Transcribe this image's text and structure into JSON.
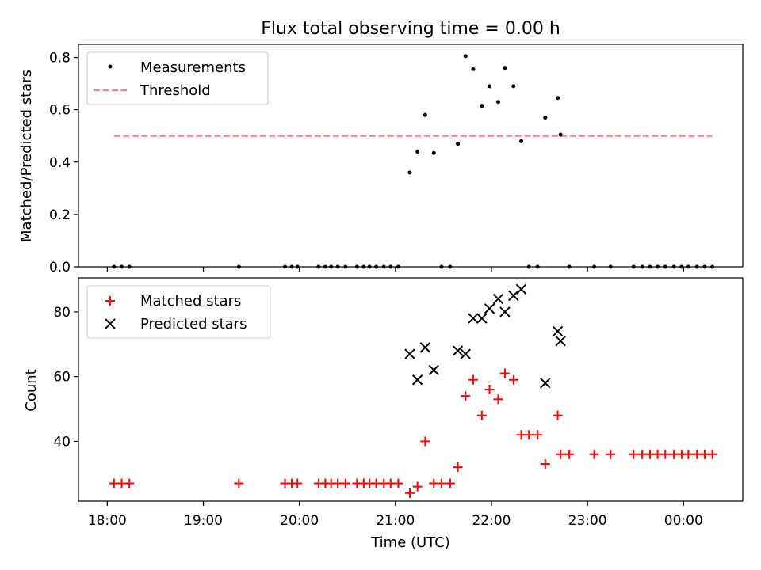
{
  "title": "Flux total observing time = 0.00 h",
  "xlabel": "Time (UTC)",
  "xticks": [
    {
      "t": 18.0,
      "label": "18:00"
    },
    {
      "t": 19.0,
      "label": "19:00"
    },
    {
      "t": 20.0,
      "label": "20:00"
    },
    {
      "t": 21.0,
      "label": "21:00"
    },
    {
      "t": 22.0,
      "label": "22:00"
    },
    {
      "t": 23.0,
      "label": "23:00"
    },
    {
      "t": 24.0,
      "label": "00:00"
    }
  ],
  "chart_data": [
    {
      "type": "scatter",
      "ylabel": "Matched/Predicted stars",
      "xlim": [
        "17:42",
        "00:37"
      ],
      "ylim": [
        0,
        0.85
      ],
      "yticks": [
        "0.0",
        "0.2",
        "0.4",
        "0.6",
        "0.8"
      ],
      "legend": "top-left",
      "grid": false,
      "series": [
        {
          "name": "Measurements",
          "marker": "dot",
          "color": "#000000",
          "points": [
            {
              "x": 18.07,
              "y": 0
            },
            {
              "x": 18.15,
              "y": 0
            },
            {
              "x": 18.23,
              "y": 0
            },
            {
              "x": 19.37,
              "y": 0
            },
            {
              "x": 19.85,
              "y": 0
            },
            {
              "x": 19.92,
              "y": 0
            },
            {
              "x": 19.98,
              "y": 0
            },
            {
              "x": 20.2,
              "y": 0
            },
            {
              "x": 20.27,
              "y": 0
            },
            {
              "x": 20.33,
              "y": 0
            },
            {
              "x": 20.4,
              "y": 0
            },
            {
              "x": 20.48,
              "y": 0
            },
            {
              "x": 20.6,
              "y": 0
            },
            {
              "x": 20.67,
              "y": 0
            },
            {
              "x": 20.73,
              "y": 0
            },
            {
              "x": 20.8,
              "y": 0
            },
            {
              "x": 20.88,
              "y": 0
            },
            {
              "x": 20.95,
              "y": 0
            },
            {
              "x": 21.03,
              "y": 0
            },
            {
              "x": 21.15,
              "y": 0.36
            },
            {
              "x": 21.23,
              "y": 0.44
            },
            {
              "x": 21.31,
              "y": 0.58
            },
            {
              "x": 21.4,
              "y": 0.435
            },
            {
              "x": 21.48,
              "y": 0
            },
            {
              "x": 21.57,
              "y": 0
            },
            {
              "x": 21.65,
              "y": 0.47
            },
            {
              "x": 21.73,
              "y": 0.805
            },
            {
              "x": 21.81,
              "y": 0.755
            },
            {
              "x": 21.9,
              "y": 0.615
            },
            {
              "x": 21.98,
              "y": 0.69
            },
            {
              "x": 22.07,
              "y": 0.63
            },
            {
              "x": 22.14,
              "y": 0.76
            },
            {
              "x": 22.23,
              "y": 0.69
            },
            {
              "x": 22.31,
              "y": 0.48
            },
            {
              "x": 22.39,
              "y": 0
            },
            {
              "x": 22.48,
              "y": 0
            },
            {
              "x": 22.56,
              "y": 0.57
            },
            {
              "x": 22.69,
              "y": 0.645
            },
            {
              "x": 22.72,
              "y": 0.505
            },
            {
              "x": 22.81,
              "y": 0
            },
            {
              "x": 23.07,
              "y": 0
            },
            {
              "x": 23.24,
              "y": 0
            },
            {
              "x": 23.48,
              "y": 0
            },
            {
              "x": 23.57,
              "y": 0
            },
            {
              "x": 23.65,
              "y": 0
            },
            {
              "x": 23.73,
              "y": 0
            },
            {
              "x": 23.81,
              "y": 0
            },
            {
              "x": 23.9,
              "y": 0
            },
            {
              "x": 23.98,
              "y": 0
            },
            {
              "x": 24.05,
              "y": 0
            },
            {
              "x": 24.14,
              "y": 0
            },
            {
              "x": 24.22,
              "y": 0
            },
            {
              "x": 24.3,
              "y": 0
            }
          ]
        },
        {
          "name": "Threshold",
          "type": "line",
          "style": "dashed",
          "color": "#ff7f7f",
          "points": [
            {
              "x": 18.07,
              "y": 0.5
            },
            {
              "x": 24.3,
              "y": 0.5
            }
          ]
        }
      ]
    },
    {
      "type": "scatter",
      "ylabel": "Count",
      "xlim": [
        "17:42",
        "00:37"
      ],
      "ylim": [
        21.5,
        90.5
      ],
      "yticks": [
        "40",
        "60",
        "80"
      ],
      "legend": "top-left",
      "grid": false,
      "series": [
        {
          "name": "Matched stars",
          "marker": "plus",
          "color": "#ff0000",
          "points": [
            {
              "x": 18.07,
              "y": 27
            },
            {
              "x": 18.15,
              "y": 27
            },
            {
              "x": 18.23,
              "y": 27
            },
            {
              "x": 19.37,
              "y": 27
            },
            {
              "x": 19.85,
              "y": 27
            },
            {
              "x": 19.92,
              "y": 27
            },
            {
              "x": 19.98,
              "y": 27
            },
            {
              "x": 20.2,
              "y": 27
            },
            {
              "x": 20.27,
              "y": 27
            },
            {
              "x": 20.33,
              "y": 27
            },
            {
              "x": 20.4,
              "y": 27
            },
            {
              "x": 20.48,
              "y": 27
            },
            {
              "x": 20.6,
              "y": 27
            },
            {
              "x": 20.67,
              "y": 27
            },
            {
              "x": 20.73,
              "y": 27
            },
            {
              "x": 20.8,
              "y": 27
            },
            {
              "x": 20.88,
              "y": 27
            },
            {
              "x": 20.95,
              "y": 27
            },
            {
              "x": 21.03,
              "y": 27
            },
            {
              "x": 21.15,
              "y": 24
            },
            {
              "x": 21.23,
              "y": 26
            },
            {
              "x": 21.31,
              "y": 40
            },
            {
              "x": 21.4,
              "y": 27
            },
            {
              "x": 21.48,
              "y": 27
            },
            {
              "x": 21.57,
              "y": 27
            },
            {
              "x": 21.65,
              "y": 32
            },
            {
              "x": 21.73,
              "y": 54
            },
            {
              "x": 21.81,
              "y": 59
            },
            {
              "x": 21.9,
              "y": 48
            },
            {
              "x": 21.98,
              "y": 56
            },
            {
              "x": 22.07,
              "y": 53
            },
            {
              "x": 22.14,
              "y": 61
            },
            {
              "x": 22.23,
              "y": 59
            },
            {
              "x": 22.31,
              "y": 42
            },
            {
              "x": 22.39,
              "y": 42
            },
            {
              "x": 22.48,
              "y": 42
            },
            {
              "x": 22.56,
              "y": 33
            },
            {
              "x": 22.69,
              "y": 48
            },
            {
              "x": 22.72,
              "y": 36
            },
            {
              "x": 22.81,
              "y": 36
            },
            {
              "x": 23.07,
              "y": 36
            },
            {
              "x": 23.24,
              "y": 36
            },
            {
              "x": 23.48,
              "y": 36
            },
            {
              "x": 23.57,
              "y": 36
            },
            {
              "x": 23.65,
              "y": 36
            },
            {
              "x": 23.73,
              "y": 36
            },
            {
              "x": 23.81,
              "y": 36
            },
            {
              "x": 23.9,
              "y": 36
            },
            {
              "x": 23.98,
              "y": 36
            },
            {
              "x": 24.05,
              "y": 36
            },
            {
              "x": 24.14,
              "y": 36
            },
            {
              "x": 24.22,
              "y": 36
            },
            {
              "x": 24.3,
              "y": 36
            }
          ]
        },
        {
          "name": "Predicted stars",
          "marker": "x",
          "color": "#000000",
          "points": [
            {
              "x": 21.15,
              "y": 67
            },
            {
              "x": 21.23,
              "y": 59
            },
            {
              "x": 21.31,
              "y": 69
            },
            {
              "x": 21.4,
              "y": 62
            },
            {
              "x": 21.65,
              "y": 68
            },
            {
              "x": 21.73,
              "y": 67
            },
            {
              "x": 21.81,
              "y": 78
            },
            {
              "x": 21.9,
              "y": 78
            },
            {
              "x": 21.98,
              "y": 81
            },
            {
              "x": 22.07,
              "y": 84
            },
            {
              "x": 22.14,
              "y": 80
            },
            {
              "x": 22.23,
              "y": 85
            },
            {
              "x": 22.31,
              "y": 87
            },
            {
              "x": 22.56,
              "y": 58
            },
            {
              "x": 22.69,
              "y": 74
            },
            {
              "x": 22.72,
              "y": 71
            }
          ]
        }
      ]
    }
  ]
}
